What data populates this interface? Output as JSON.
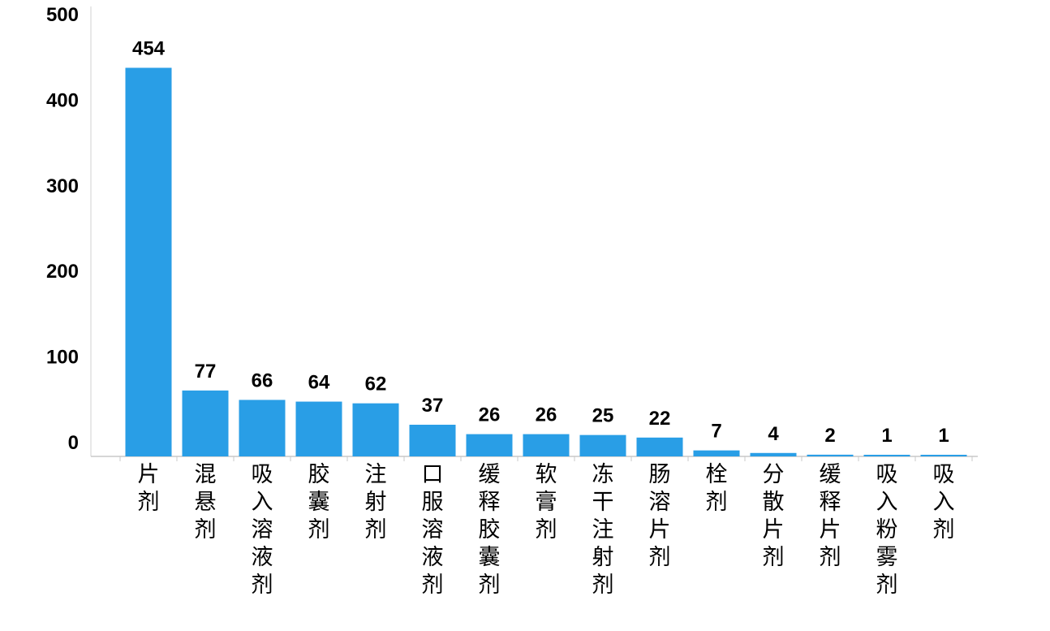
{
  "chart_data": {
    "type": "bar",
    "title": "",
    "xlabel": "",
    "ylabel": "",
    "ylim": [
      0,
      500
    ],
    "yticks": [
      0,
      100,
      200,
      300,
      400,
      500
    ],
    "grid": false,
    "legend": "none",
    "bar_color": "#299ee6",
    "categories": [
      "片剂",
      "混悬剂",
      "吸入溶液剂",
      "胶囊剂",
      "注射剂",
      "口服溶液剂",
      "缓释胶囊剂",
      "软膏剂",
      "冻干注射剂",
      "肠溶片剂",
      "栓剂",
      "分散片剂",
      "缓释片剂",
      "吸入粉雾剂",
      "吸入剂"
    ],
    "values": [
      454,
      77,
      66,
      64,
      62,
      37,
      26,
      26,
      25,
      22,
      7,
      4,
      2,
      1,
      1
    ]
  }
}
